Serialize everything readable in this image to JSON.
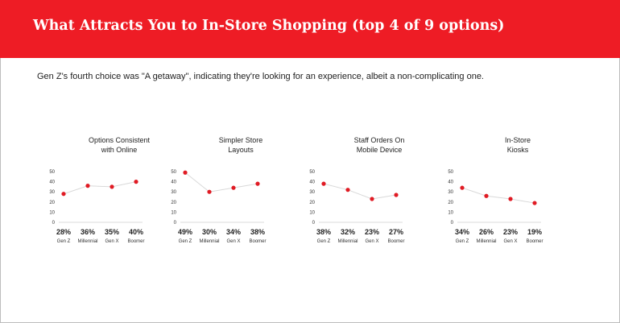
{
  "header": {
    "title": "What Attracts You to In-Store Shopping (top 4 of 9 options)",
    "bg_color": "#ee1c25"
  },
  "subtitle": "Gen Z's fourth choice was \"A getaway\", indicating they're looking for an experience, albeit a non-complicating one.",
  "chart_data": [
    {
      "type": "line",
      "title_lines": [
        "Options Consistent",
        "with Online"
      ],
      "categories": [
        "Gen Z",
        "Millennial",
        "Gen X",
        "Boomer"
      ],
      "values": [
        28,
        36,
        35,
        40
      ],
      "value_labels": [
        "28%",
        "36%",
        "35%",
        "40%"
      ],
      "yticks": [
        0,
        10,
        20,
        30,
        40,
        50
      ],
      "ylim": [
        0,
        50
      ],
      "point_color": "#e01b24",
      "line_color": "#d9d9d9"
    },
    {
      "type": "line",
      "title_lines": [
        "Simpler Store",
        "Layouts"
      ],
      "categories": [
        "Gen Z",
        "Millennial",
        "Gen X",
        "Boomer"
      ],
      "values": [
        49,
        30,
        34,
        38
      ],
      "value_labels": [
        "49%",
        "30%",
        "34%",
        "38%"
      ],
      "yticks": [
        0,
        10,
        20,
        30,
        40,
        50
      ],
      "ylim": [
        0,
        50
      ],
      "point_color": "#e01b24",
      "line_color": "#d9d9d9"
    },
    {
      "type": "line",
      "title_lines": [
        "Staff Orders On",
        "Mobile Device"
      ],
      "categories": [
        "Gen Z",
        "Millennial",
        "Gen X",
        "Boomer"
      ],
      "values": [
        38,
        32,
        23,
        27
      ],
      "value_labels": [
        "38%",
        "32%",
        "23%",
        "27%"
      ],
      "yticks": [
        0,
        10,
        20,
        30,
        40,
        50
      ],
      "ylim": [
        0,
        50
      ],
      "point_color": "#e01b24",
      "line_color": "#d9d9d9"
    },
    {
      "type": "line",
      "title_lines": [
        "In-Store",
        "Kiosks"
      ],
      "categories": [
        "Gen Z",
        "Millennial",
        "Gen X",
        "Boomer"
      ],
      "values": [
        34,
        26,
        23,
        19
      ],
      "value_labels": [
        "34%",
        "26%",
        "23%",
        "19%"
      ],
      "yticks": [
        0,
        10,
        20,
        30,
        40,
        50
      ],
      "ylim": [
        0,
        50
      ],
      "point_color": "#e01b24",
      "line_color": "#d9d9d9"
    }
  ]
}
